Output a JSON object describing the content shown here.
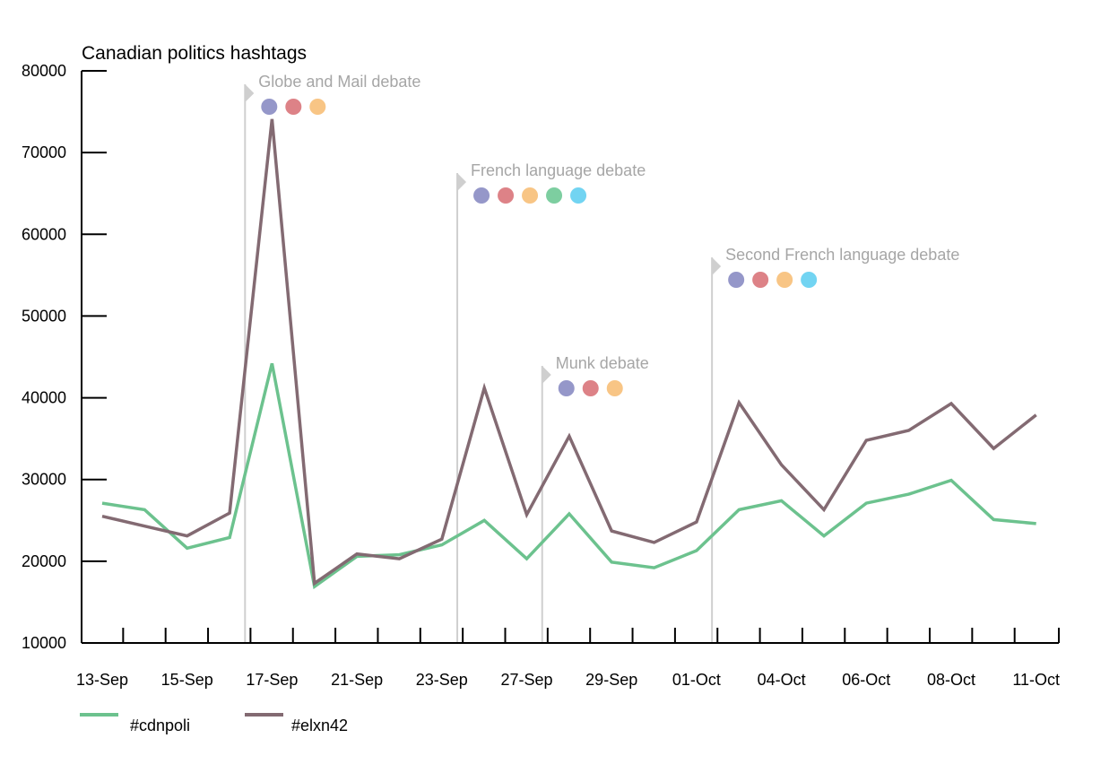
{
  "chart_data": {
    "type": "line",
    "title": "Canadian politics hashtags",
    "xlabel": "",
    "ylabel": "",
    "ylim": [
      10000,
      80000
    ],
    "yticks": [
      10000,
      20000,
      30000,
      40000,
      50000,
      60000,
      70000,
      80000
    ],
    "x_tick_labels": [
      "13-Sep",
      "15-Sep",
      "17-Sep",
      "21-Sep",
      "23-Sep",
      "27-Sep",
      "29-Sep",
      "01-Oct",
      "04-Oct",
      "06-Oct",
      "08-Oct",
      "11-Oct"
    ],
    "grid": false,
    "legend_position": "bottom-left",
    "series": [
      {
        "name": "#cdnpoli",
        "color": "#6cc28e",
        "values": [
          27100,
          26300,
          21600,
          22900,
          44200,
          16900,
          20600,
          20800,
          22000,
          25000,
          20300,
          25800,
          19900,
          19200,
          21300,
          26300,
          27400,
          23100,
          27100,
          28200,
          29900,
          25100,
          24600
        ]
      },
      {
        "name": "#elxn42",
        "color": "#836a72",
        "values": [
          25500,
          24300,
          23100,
          25900,
          74100,
          17300,
          20900,
          20300,
          22700,
          41200,
          25700,
          35300,
          23700,
          22300,
          24800,
          39400,
          31800,
          26300,
          34800,
          36000,
          39300,
          33800,
          37900
        ]
      }
    ],
    "annotations": [
      {
        "label": "Globe and Mail debate",
        "x_index": 3.85,
        "dots": [
          "#9597c9",
          "#dd8287",
          "#f8c585"
        ]
      },
      {
        "label": "French language debate",
        "x_index": 8.85,
        "dots": [
          "#9597c9",
          "#dd8287",
          "#f8c585",
          "#7dcea0",
          "#72d4f2"
        ]
      },
      {
        "label": "Munk debate",
        "x_index": 10.85,
        "dots": [
          "#9597c9",
          "#dd8287",
          "#f8c585"
        ]
      },
      {
        "label": "Second French language debate",
        "x_index": 14.85,
        "dots": [
          "#9597c9",
          "#dd8287",
          "#f8c585",
          "#72d4f2"
        ]
      }
    ]
  }
}
